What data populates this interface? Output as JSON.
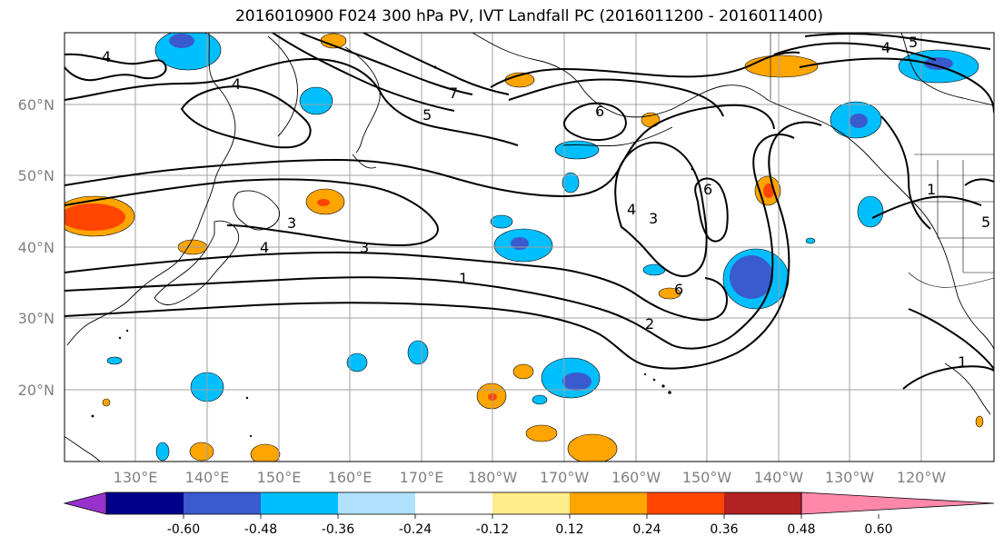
{
  "title": "2016010900 F024 300 hPa PV, IVT Landfall PC (2016011200 - 2016011400)",
  "map": {
    "lat_labels": [
      "60°N",
      "50°N",
      "40°N",
      "30°N",
      "20°N"
    ],
    "lon_labels": [
      "130°E",
      "140°E",
      "150°E",
      "160°E",
      "170°E",
      "180°W",
      "170°W",
      "160°W",
      "150°W",
      "140°W",
      "130°W",
      "120°W"
    ],
    "contour_labels": [
      "4",
      "4",
      "4",
      "5",
      "7",
      "6",
      "3",
      "3",
      "4",
      "3",
      "1",
      "6",
      "6",
      "2",
      "1",
      "4",
      "5",
      "5",
      "1"
    ]
  },
  "colorbar": {
    "colors": [
      "#9932cc",
      "#00008b",
      "#3a5bcd",
      "#00bfff",
      "#b0e2ff",
      "#ffffff",
      "#ffec8b",
      "#ffa500",
      "#ff4500",
      "#b22222",
      "#ff88aa"
    ],
    "tick_labels": [
      "-0.60",
      "-0.48",
      "-0.36",
      "-0.24",
      "-0.12",
      "0.12",
      "0.24",
      "0.36",
      "0.48",
      "0.60"
    ]
  }
}
